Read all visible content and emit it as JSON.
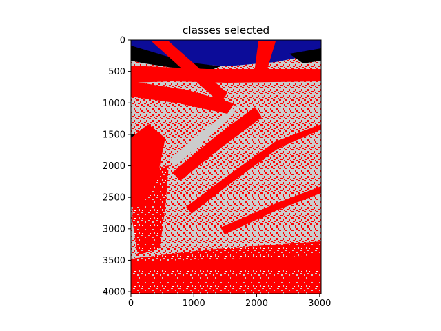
{
  "chart_data": {
    "type": "heatmap",
    "title": "classes selected",
    "xlabel": "",
    "ylabel": "",
    "xlim": [
      0,
      3024
    ],
    "ylim": [
      4032,
      0
    ],
    "x_ticks": [
      0,
      1000,
      2000,
      3000
    ],
    "y_ticks": [
      0,
      500,
      1000,
      1500,
      2000,
      2500,
      3000,
      3500,
      4000
    ],
    "grid": false,
    "legend": "none",
    "classes": [
      {
        "color": "#ff0000"
      },
      {
        "color": "#cccccc"
      },
      {
        "color": "#000000"
      },
      {
        "color": "#0c0c99"
      }
    ]
  }
}
